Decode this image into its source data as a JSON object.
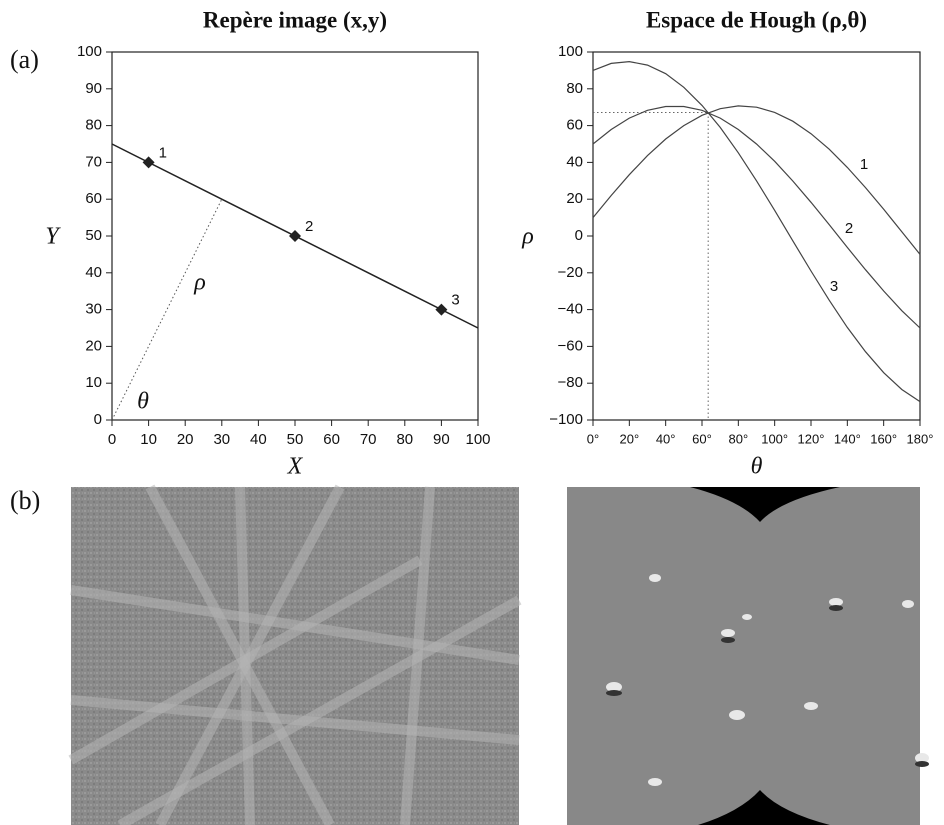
{
  "labels": {
    "a": "(a)",
    "b": "(b)"
  },
  "chart_data": [
    {
      "type": "scatter",
      "title": "Repère image (x,y)",
      "x_label": "X",
      "y_label": "Y",
      "x": [
        10,
        50,
        90
      ],
      "values": [
        70,
        50,
        30
      ],
      "point_labels": [
        "1",
        "2",
        "3"
      ],
      "color": "#222222",
      "line": {
        "x": [
          0,
          100
        ],
        "values": [
          75,
          25
        ]
      },
      "perpendicular": {
        "x": [
          0,
          30
        ],
        "values": [
          0,
          60
        ]
      },
      "annotations": [
        "ρ",
        "θ"
      ],
      "xlim": [
        0,
        100
      ],
      "ylim": [
        0,
        100
      ],
      "xticks": [
        0,
        10,
        20,
        30,
        40,
        50,
        60,
        70,
        80,
        90,
        100
      ],
      "yticks": [
        0,
        10,
        20,
        30,
        40,
        50,
        60,
        70,
        80,
        90,
        100
      ]
    },
    {
      "type": "line",
      "title": "Espace de Hough (ρ,θ)",
      "x_label": "θ",
      "y_label": "ρ",
      "x": [
        0,
        10,
        20,
        30,
        40,
        50,
        60,
        70,
        80,
        90,
        100,
        110,
        120,
        130,
        140,
        150,
        160,
        170,
        180
      ],
      "series": [
        {
          "name": "1",
          "color": "#444444",
          "values": [
            10,
            22.0,
            33.3,
            43.7,
            52.7,
            60.0,
            65.6,
            69.2,
            70.7,
            70,
            67.2,
            62.4,
            55.6,
            47.2,
            37.3,
            26.3,
            14.5,
            2.3,
            -10
          ]
        },
        {
          "name": "2",
          "color": "#444444",
          "values": [
            50,
            57.9,
            64.1,
            68.3,
            70.4,
            70.4,
            68.3,
            64.1,
            57.9,
            50,
            40.6,
            29.9,
            18.3,
            6.2,
            -6.2,
            -18.3,
            -29.9,
            -40.6,
            -50
          ]
        },
        {
          "name": "3",
          "color": "#444444",
          "values": [
            90,
            93.8,
            94.8,
            92.9,
            88.2,
            80.8,
            71.0,
            59.0,
            45.2,
            30,
            13.9,
            -2.6,
            -19.0,
            -34.9,
            -49.7,
            -62.9,
            -74.3,
            -83.4,
            -90
          ]
        }
      ],
      "guide": {
        "theta": 63.4,
        "rho": 67.1
      },
      "xlim": [
        0,
        180
      ],
      "ylim": [
        -100,
        100
      ],
      "xticks": [
        {
          "value": 0,
          "label": "0°"
        },
        {
          "value": 20,
          "label": "20°"
        },
        {
          "value": 40,
          "label": "40°"
        },
        {
          "value": 60,
          "label": "60°"
        },
        {
          "value": 80,
          "label": "80°"
        },
        {
          "value": 100,
          "label": "100°"
        },
        {
          "value": 120,
          "label": "120°"
        },
        {
          "value": 140,
          "label": "140°"
        },
        {
          "value": 160,
          "label": "160°"
        },
        {
          "value": 180,
          "label": "180°"
        }
      ],
      "yticks": [
        {
          "value": -100,
          "label": "−100"
        },
        {
          "value": -80,
          "label": "−80"
        },
        {
          "value": -60,
          "label": "−60"
        },
        {
          "value": -40,
          "label": "−40"
        },
        {
          "value": -20,
          "label": "−20"
        },
        0,
        20,
        40,
        60,
        80,
        100
      ]
    }
  ]
}
